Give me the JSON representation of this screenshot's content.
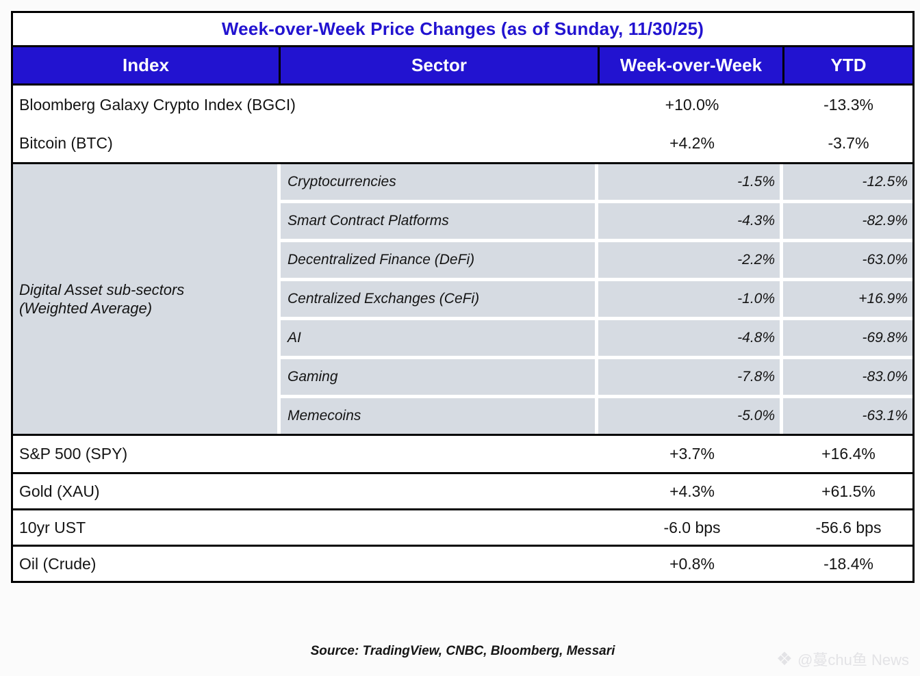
{
  "table": {
    "title": "Week-over-Week Price Changes (as of Sunday, 11/30/25)",
    "columns": {
      "index": "Index",
      "sector": "Sector",
      "wow": "Week-over-Week",
      "ytd": "YTD"
    },
    "rows_top": [
      {
        "label": "Bloomberg Galaxy Crypto Index (BGCI)",
        "wow": "+10.0%",
        "ytd": "-13.3%"
      },
      {
        "label": "Bitcoin (BTC)",
        "wow": "+4.2%",
        "ytd": "-3.7%"
      }
    ],
    "subsectors": {
      "label_line1": "Digital Asset sub-sectors",
      "label_line2": "(Weighted Average)",
      "rows": [
        {
          "sector": "Cryptocurrencies",
          "wow": "-1.5%",
          "ytd": "-12.5%"
        },
        {
          "sector": "Smart Contract Platforms",
          "wow": "-4.3%",
          "ytd": "-82.9%"
        },
        {
          "sector": "Decentralized Finance (DeFi)",
          "wow": "-2.2%",
          "ytd": "-63.0%"
        },
        {
          "sector": "Centralized Exchanges (CeFi)",
          "wow": "-1.0%",
          "ytd": "+16.9%"
        },
        {
          "sector": "AI",
          "wow": "-4.8%",
          "ytd": "-69.8%"
        },
        {
          "sector": "Gaming",
          "wow": "-7.8%",
          "ytd": "-83.0%"
        },
        {
          "sector": "Memecoins",
          "wow": "-5.0%",
          "ytd": "-63.1%"
        }
      ]
    },
    "rows_bottom": [
      {
        "label": "S&P 500 (SPY)",
        "wow": "+3.7%",
        "ytd": "+16.4%"
      },
      {
        "label": "Gold (XAU)",
        "wow": "+4.3%",
        "ytd": "+61.5%"
      },
      {
        "label": "10yr UST",
        "wow": "-6.0 bps",
        "ytd": "-56.6 bps"
      },
      {
        "label": "Oil (Crude)",
        "wow": "+0.8%",
        "ytd": "-18.4%"
      }
    ]
  },
  "footer": {
    "source": "Source: TradingView, CNBC, Bloomberg, Messari"
  },
  "watermark": {
    "icon_glyph": "❖",
    "text": "@蔓chu鱼 News"
  },
  "colors": {
    "accent_blue": "#2213d0",
    "section_gray": "#d6dbe2",
    "border_black": "#000000",
    "watermark_gray": "#e3e3e6"
  },
  "chart_data": {
    "type": "table",
    "title": "Week-over-Week Price Changes (as of Sunday, 11/30/25)",
    "columns": [
      "Index",
      "Sector",
      "Week-over-Week",
      "YTD"
    ],
    "rows": [
      [
        "Bloomberg Galaxy Crypto Index (BGCI)",
        "",
        "+10.0%",
        "-13.3%"
      ],
      [
        "Bitcoin (BTC)",
        "",
        "+4.2%",
        "-3.7%"
      ],
      [
        "Digital Asset sub-sectors (Weighted Average)",
        "Cryptocurrencies",
        "-1.5%",
        "-12.5%"
      ],
      [
        "Digital Asset sub-sectors (Weighted Average)",
        "Smart Contract Platforms",
        "-4.3%",
        "-82.9%"
      ],
      [
        "Digital Asset sub-sectors (Weighted Average)",
        "Decentralized Finance (DeFi)",
        "-2.2%",
        "-63.0%"
      ],
      [
        "Digital Asset sub-sectors (Weighted Average)",
        "Centralized Exchanges (CeFi)",
        "-1.0%",
        "+16.9%"
      ],
      [
        "Digital Asset sub-sectors (Weighted Average)",
        "AI",
        "-4.8%",
        "-69.8%"
      ],
      [
        "Digital Asset sub-sectors (Weighted Average)",
        "Gaming",
        "-7.8%",
        "-83.0%"
      ],
      [
        "Digital Asset sub-sectors (Weighted Average)",
        "Memecoins",
        "-5.0%",
        "-63.1%"
      ],
      [
        "S&P 500 (SPY)",
        "",
        "+3.7%",
        "+16.4%"
      ],
      [
        "Gold (XAU)",
        "",
        "+4.3%",
        "+61.5%"
      ],
      [
        "10yr UST",
        "",
        "-6.0 bps",
        "-56.6 bps"
      ],
      [
        "Oil (Crude)",
        "",
        "+0.8%",
        "-18.4%"
      ]
    ],
    "notes": "Source: TradingView, CNBC, Bloomberg, Messari"
  }
}
